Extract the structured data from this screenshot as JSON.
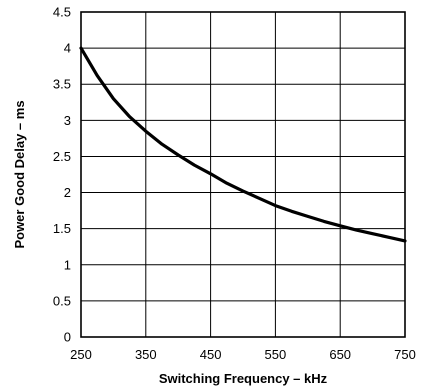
{
  "chart_data": {
    "type": "line",
    "title": "",
    "xlabel": "Switching Frequency – kHz",
    "ylabel": "Power Good Delay – ms",
    "xlim": [
      250,
      750
    ],
    "ylim": [
      0,
      4.5
    ],
    "x_ticks": [
      "250",
      "350",
      "450",
      "550",
      "650",
      "750"
    ],
    "y_ticks": [
      "0",
      "0.5",
      "1",
      "1.5",
      "2",
      "2.5",
      "3",
      "3.5",
      "4",
      "4.5"
    ],
    "grid": true,
    "legend": "none",
    "line_color": "#000000",
    "series": [
      {
        "x": [
          250,
          275,
          300,
          325,
          350,
          375,
          400,
          425,
          450,
          475,
          500,
          525,
          550,
          575,
          600,
          625,
          650,
          675,
          700,
          725,
          750
        ],
        "y": [
          4.0,
          3.62,
          3.3,
          3.05,
          2.85,
          2.67,
          2.52,
          2.38,
          2.26,
          2.13,
          2.02,
          1.92,
          1.82,
          1.74,
          1.67,
          1.6,
          1.54,
          1.48,
          1.43,
          1.38,
          1.33
        ]
      }
    ]
  }
}
